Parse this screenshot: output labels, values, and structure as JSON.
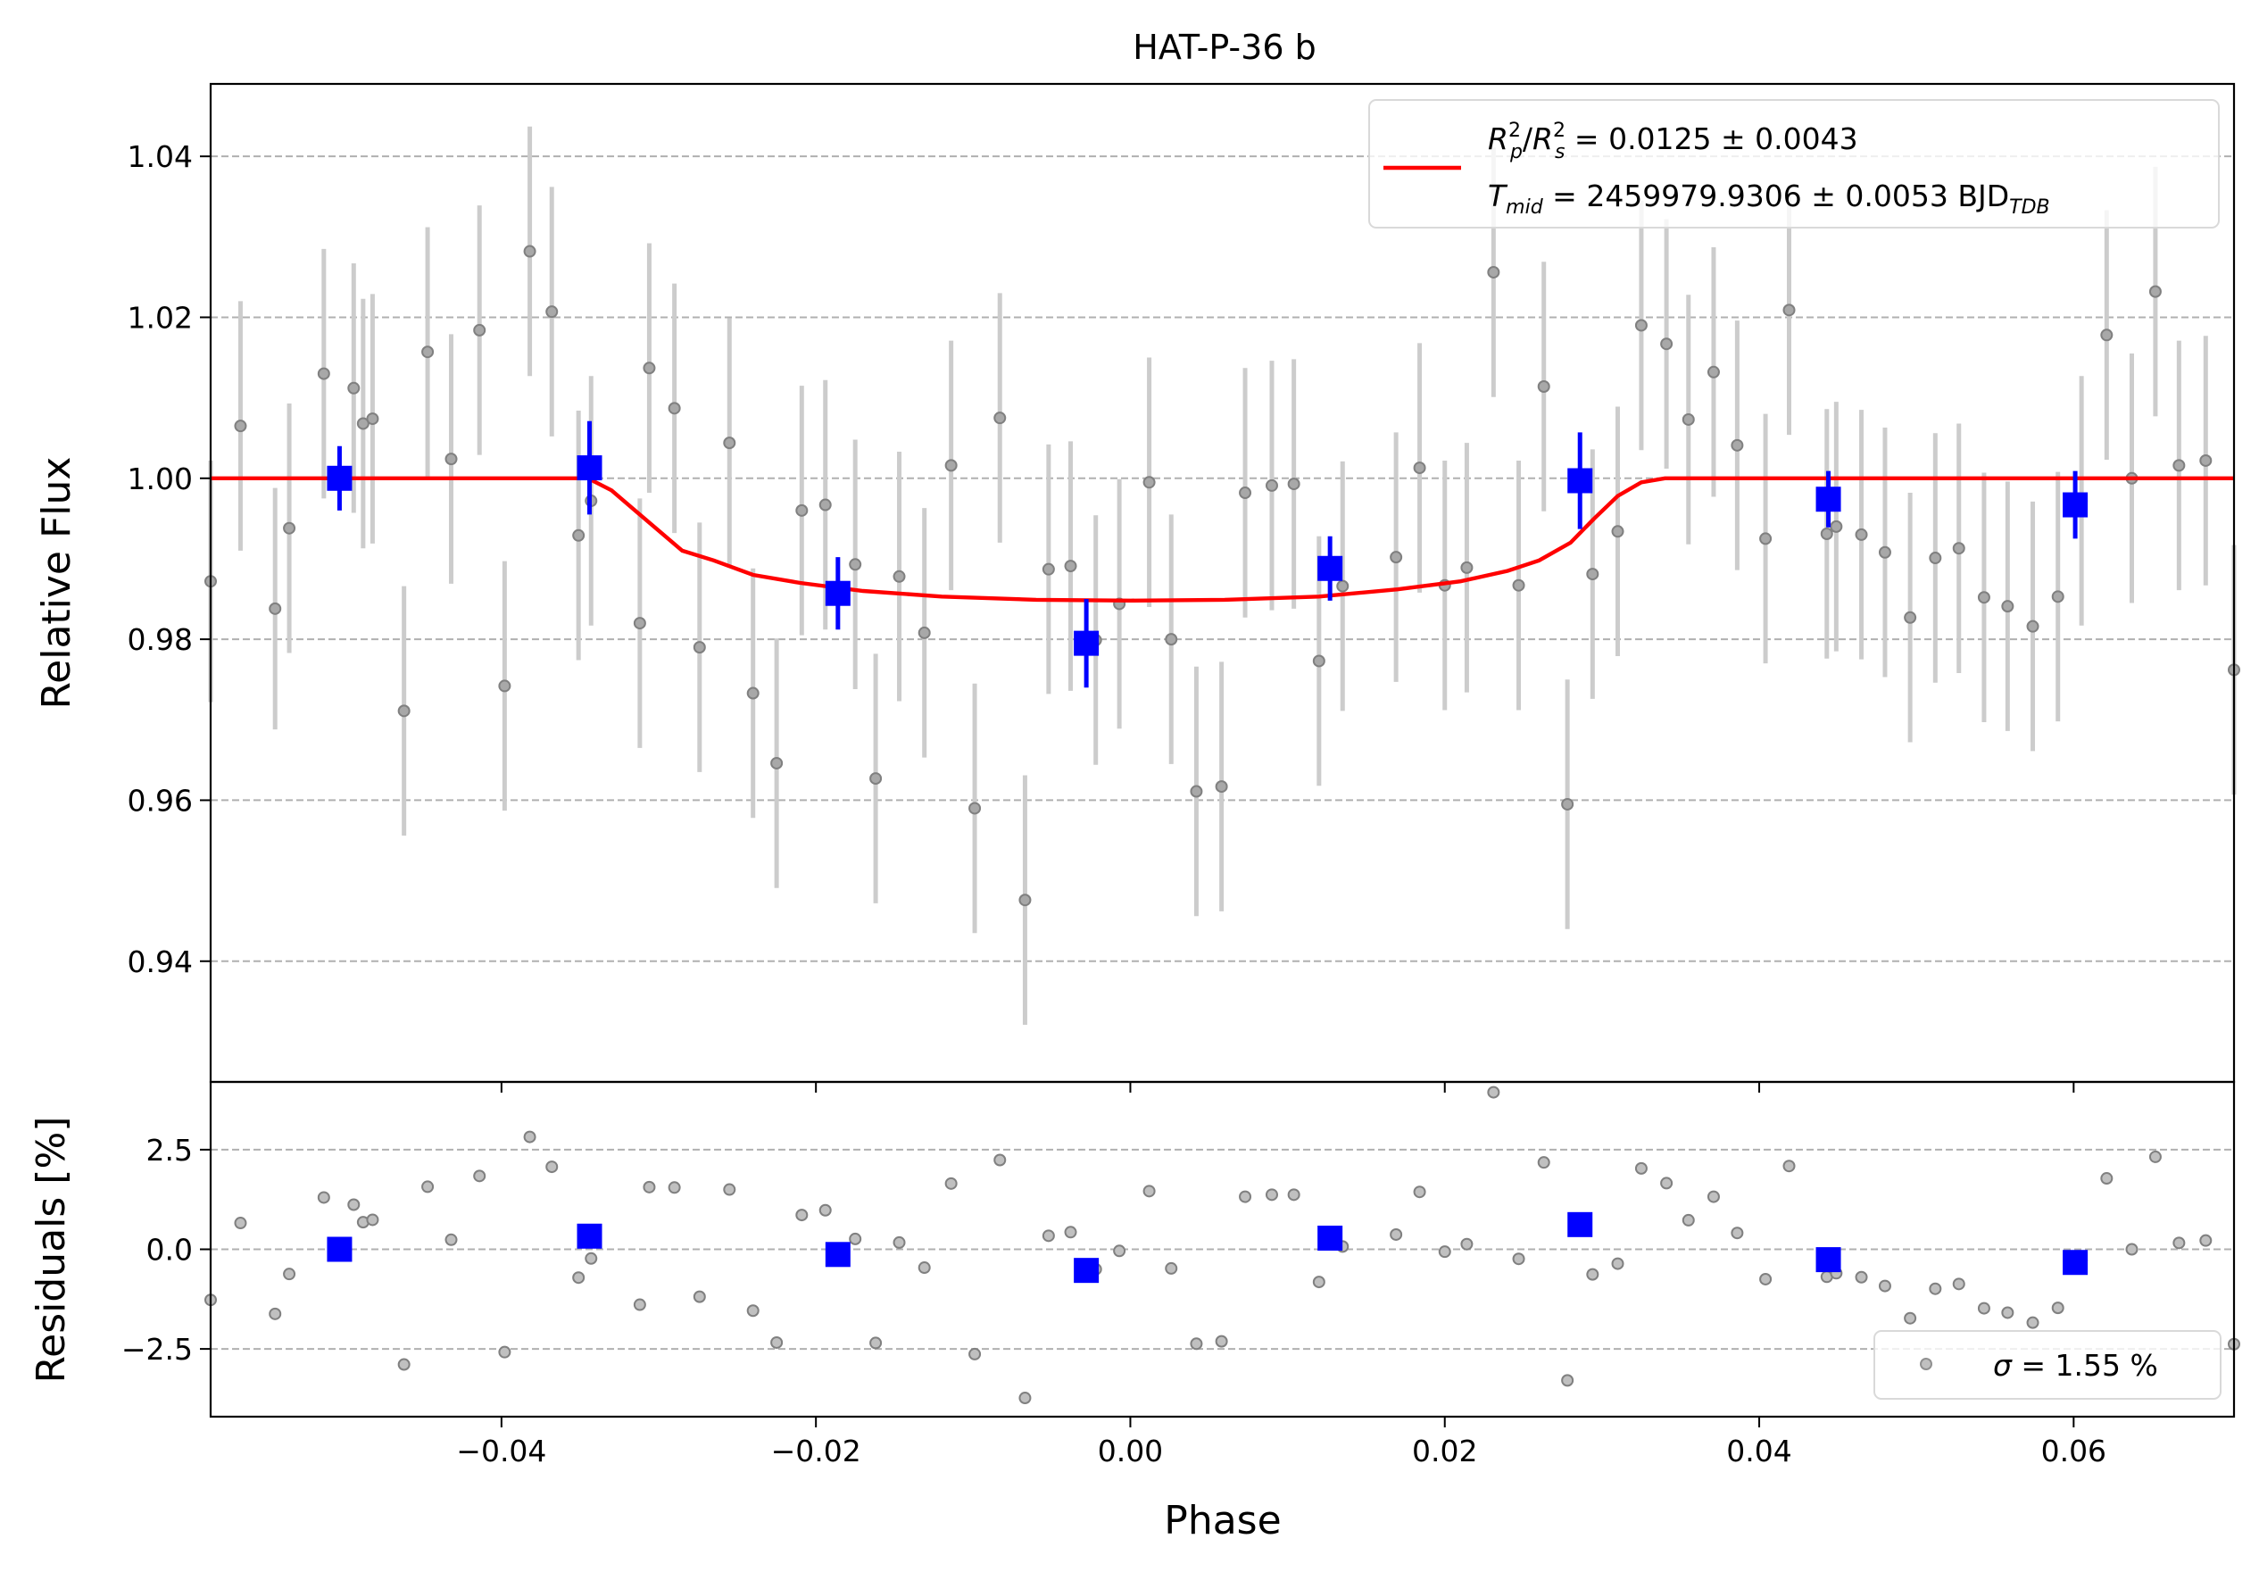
{
  "figure": {
    "title": "HAT-P-36 b",
    "colors": {
      "model": "#ff0000",
      "binned": "#0000ff",
      "raw_points": "#808080",
      "raw_errorbars": "#cccccc",
      "grid": "#b0b0b0"
    }
  },
  "legend_top": {
    "line1": "Rₚ²/Rₛ² = 0.0125 ± 0.0043",
    "line1_rp": "R",
    "line1_rp_sub": "p",
    "line1_rs": "R",
    "line1_rs_sub": "s",
    "line1_value": " = 0.0125 ± 0.0043",
    "line2_t": "T",
    "line2_t_sub": "mid",
    "line2_value": " = 2459979.9306 ± 0.0053 BJD",
    "line2_tdb_sub": "TDB"
  },
  "legend_bottom": {
    "sigma_symbol": "σ",
    "sigma_value": " = 1.55 %"
  },
  "chart_data": [
    {
      "type": "scatter",
      "panel": "main",
      "title": "HAT-P-36 b",
      "xlabel": "",
      "ylabel": "Relative Flux",
      "xlim": [
        -0.0585,
        0.0702
      ],
      "ylim": [
        0.925,
        1.049
      ],
      "xticks": [
        -0.04,
        -0.02,
        0.0,
        0.02,
        0.04,
        0.06
      ],
      "yticks": [
        0.94,
        0.96,
        0.98,
        1.0,
        1.02,
        1.04
      ],
      "ytick_labels": [
        "0.94",
        "0.96",
        "0.98",
        "1.00",
        "1.02",
        "1.04"
      ],
      "grid": "horizontal dashed",
      "legend_position": "top-right",
      "raw": {
        "x": [
          -0.0585,
          -0.0566,
          -0.0544,
          -0.0535,
          -0.0513,
          -0.0494,
          -0.0488,
          -0.0482,
          -0.0462,
          -0.0447,
          -0.0432,
          -0.0414,
          -0.0398,
          -0.0382,
          -0.0368,
          -0.0351,
          -0.0343,
          -0.0312,
          -0.0306,
          -0.029,
          -0.0274,
          -0.0255,
          -0.024,
          -0.0225,
          -0.0209,
          -0.0194,
          -0.0175,
          -0.0162,
          -0.0147,
          -0.0131,
          -0.0114,
          -0.0099,
          -0.0083,
          -0.0067,
          -0.0052,
          -0.0038,
          -0.0022,
          -0.0007,
          0.0012,
          0.0026,
          0.0042,
          0.0058,
          0.0073,
          0.009,
          0.0104,
          0.012,
          0.0135,
          0.0169,
          0.0184,
          0.02,
          0.0214,
          0.0231,
          0.0247,
          0.0263,
          0.0278,
          0.0294,
          0.031,
          0.0325,
          0.0341,
          0.0355,
          0.0371,
          0.0386,
          0.0404,
          0.0419,
          0.0443,
          0.0449,
          0.0465,
          0.048,
          0.0496,
          0.0512,
          0.0527,
          0.0543,
          0.0558,
          0.0574,
          0.059,
          0.0605,
          0.0621,
          0.0637,
          0.0652,
          0.0667,
          0.0684,
          0.0702
        ],
        "y": [
          0.9872,
          1.0065,
          0.9838,
          0.9938,
          1.013,
          1.0112,
          1.0068,
          1.0074,
          0.9711,
          1.0157,
          1.0024,
          1.0184,
          0.9742,
          1.0282,
          1.0207,
          0.9929,
          0.9972,
          0.982,
          1.0137,
          1.0087,
          0.979,
          1.0044,
          0.9733,
          0.9646,
          0.996,
          0.9967,
          0.9893,
          0.9627,
          0.9878,
          0.9808,
          1.0016,
          0.959,
          1.0075,
          0.9476,
          0.9887,
          0.9891,
          0.9799,
          0.9844,
          0.9995,
          0.98,
          0.9611,
          0.9617,
          0.9982,
          0.9991,
          0.9993,
          0.9773,
          0.9866,
          0.9902,
          1.0013,
          0.9867,
          0.9889,
          1.0256,
          0.9867,
          1.0114,
          0.9595,
          0.9881,
          0.9934,
          1.019,
          1.0167,
          1.0073,
          1.0132,
          1.0041,
          0.9925,
          1.0209,
          0.9931,
          0.994,
          0.993,
          0.9908,
          0.9827,
          0.9901,
          0.9913,
          0.9852,
          0.9841,
          0.9816,
          0.9853,
          0.9972,
          1.0178,
          1.0,
          1.0232,
          1.0016,
          1.0022,
          0.9762
        ],
        "yerr": [
          0.015,
          0.0155,
          0.015,
          0.0155,
          0.0155,
          0.0155,
          0.0155,
          0.0155,
          0.0155,
          0.0155,
          0.0155,
          0.0155,
          0.0155,
          0.0155,
          0.0155,
          0.0155,
          0.0155,
          0.0155,
          0.0155,
          0.0155,
          0.0155,
          0.0155,
          0.0155,
          0.0155,
          0.0155,
          0.0155,
          0.0155,
          0.0155,
          0.0155,
          0.0155,
          0.0155,
          0.0155,
          0.0155,
          0.0155,
          0.0155,
          0.0155,
          0.0155,
          0.0155,
          0.0155,
          0.0155,
          0.0155,
          0.0155,
          0.0155,
          0.0155,
          0.0155,
          0.0155,
          0.0155,
          0.0155,
          0.0155,
          0.0155,
          0.0155,
          0.0155,
          0.0155,
          0.0155,
          0.0155,
          0.0155,
          0.0155,
          0.0155,
          0.0155,
          0.0155,
          0.0155,
          0.0155,
          0.0155,
          0.0155,
          0.0155,
          0.0155,
          0.0155,
          0.0155,
          0.0155,
          0.0155,
          0.0155,
          0.0155,
          0.0155,
          0.0155,
          0.0155,
          0.0155,
          0.0155,
          0.0155,
          0.0155,
          0.0155,
          0.0155,
          0.0155
        ]
      },
      "binned": {
        "x": [
          -0.0503,
          -0.0344,
          -0.0186,
          -0.0028,
          0.0127,
          0.0286,
          0.0444,
          0.0601
        ],
        "y": [
          1.0,
          1.0013,
          0.9857,
          0.9795,
          0.9888,
          0.9997,
          0.9974,
          0.9967
        ],
        "yerr": [
          0.004,
          0.0058,
          0.0045,
          0.0055,
          0.004,
          0.006,
          0.0035,
          0.0042
        ]
      },
      "model": {
        "name": "Rₚ²/Rₛ² = 0.0125 ± 0.0043, T_mid = 2459979.9306 ± 0.0053 BJD_TDB",
        "x": [
          -0.0585,
          -0.0345,
          -0.033,
          -0.0315,
          -0.03,
          -0.0285,
          -0.0265,
          -0.024,
          -0.021,
          -0.017,
          -0.012,
          -0.006,
          0.0,
          0.006,
          0.012,
          0.017,
          0.021,
          0.024,
          0.026,
          0.028,
          0.0295,
          0.031,
          0.0325,
          0.034,
          0.0702
        ],
        "y": [
          1.0,
          1.0,
          0.9985,
          0.996,
          0.9935,
          0.991,
          0.9898,
          0.988,
          0.987,
          0.986,
          0.9853,
          0.9849,
          0.9848,
          0.9849,
          0.9853,
          0.9862,
          0.9872,
          0.9885,
          0.9898,
          0.992,
          0.995,
          0.9978,
          0.9995,
          1.0,
          1.0
        ]
      }
    },
    {
      "type": "scatter",
      "panel": "residuals",
      "xlabel": "Phase",
      "ylabel": "Residuals [%]",
      "xlim": [
        -0.0585,
        0.0702
      ],
      "ylim": [
        -4.2,
        4.2
      ],
      "xticks": [
        -0.04,
        -0.02,
        0.0,
        0.02,
        0.04,
        0.06
      ],
      "xtick_labels": [
        "−0.04",
        "−0.02",
        "0.00",
        "0.02",
        "0.04",
        "0.06"
      ],
      "yticks": [
        -2.5,
        0.0,
        2.5
      ],
      "ytick_labels": [
        "−2.5",
        "0.0",
        "2.5"
      ],
      "grid": "horizontal dashed",
      "legend_position": "bottom-right",
      "raw": {
        "x": [
          -0.0585,
          -0.0566,
          -0.0544,
          -0.0535,
          -0.0513,
          -0.0494,
          -0.0488,
          -0.0482,
          -0.0462,
          -0.0447,
          -0.0432,
          -0.0414,
          -0.0398,
          -0.0382,
          -0.0368,
          -0.0351,
          -0.0343,
          -0.0312,
          -0.0306,
          -0.029,
          -0.0274,
          -0.0255,
          -0.024,
          -0.0225,
          -0.0209,
          -0.0194,
          -0.0175,
          -0.0162,
          -0.0147,
          -0.0131,
          -0.0114,
          -0.0099,
          -0.0083,
          -0.0067,
          -0.0052,
          -0.0038,
          -0.0022,
          -0.0007,
          0.0012,
          0.0026,
          0.0042,
          0.0058,
          0.0073,
          0.009,
          0.0104,
          0.012,
          0.0135,
          0.0169,
          0.0184,
          0.02,
          0.0214,
          0.0231,
          0.0247,
          0.0263,
          0.0278,
          0.0294,
          0.031,
          0.0325,
          0.0341,
          0.0355,
          0.0371,
          0.0386,
          0.0404,
          0.0419,
          0.0443,
          0.0449,
          0.0465,
          0.048,
          0.0496,
          0.0512,
          0.0527,
          0.0543,
          0.0558,
          0.0574,
          0.059,
          0.0605,
          0.0621,
          0.0637,
          0.0652,
          0.0667,
          0.0684,
          0.0702
        ],
        "y": [
          -1.27,
          0.66,
          -1.62,
          -0.62,
          1.3,
          1.12,
          0.68,
          0.74,
          -2.89,
          1.57,
          0.24,
          1.84,
          -2.58,
          2.82,
          2.07,
          -0.71,
          -0.23,
          -1.39,
          1.56,
          1.55,
          -1.19,
          1.5,
          -1.54,
          -2.34,
          0.86,
          0.98,
          0.26,
          -2.35,
          0.17,
          -0.46,
          1.65,
          -2.63,
          2.24,
          -3.73,
          0.34,
          0.43,
          -0.5,
          -0.04,
          1.46,
          -0.48,
          -2.37,
          -2.31,
          1.32,
          1.37,
          1.37,
          -0.82,
          0.07,
          0.37,
          1.44,
          -0.06,
          0.13,
          3.94,
          -0.24,
          2.18,
          -3.29,
          -0.63,
          -0.36,
          2.03,
          1.66,
          0.73,
          1.32,
          0.41,
          -0.75,
          2.09,
          -0.69,
          -0.6,
          -0.7,
          -0.92,
          -1.73,
          -0.99,
          -0.87,
          -1.48,
          -1.59,
          -1.84,
          -1.47,
          -0.28,
          1.78,
          0.0,
          2.32,
          0.16,
          0.22,
          -2.38
        ]
      },
      "binned": {
        "x": [
          -0.0503,
          -0.0344,
          -0.0186,
          -0.0028,
          0.0127,
          0.0286,
          0.0444,
          0.0601
        ],
        "y": [
          0.0,
          0.33,
          -0.13,
          -0.53,
          0.28,
          0.62,
          -0.26,
          -0.33
        ]
      },
      "legend": "σ = 1.55 %"
    }
  ]
}
